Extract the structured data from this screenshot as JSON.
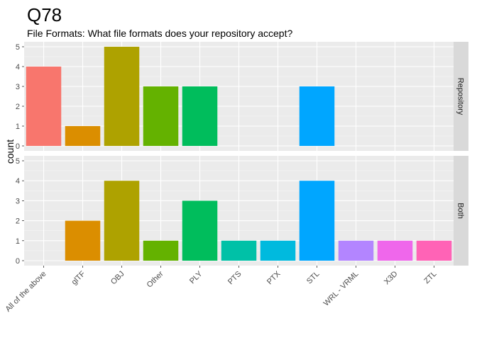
{
  "chart_data": {
    "type": "bar",
    "title": "Q78",
    "subtitle": "File Formats: What file formats does your repository accept?",
    "xlabel": "",
    "ylabel": "count",
    "ylim": [
      0,
      5
    ],
    "yticks": [
      "0",
      "1",
      "2",
      "3",
      "4",
      "5"
    ],
    "categories": [
      "All of the above",
      "glTF",
      "OBJ",
      "Other",
      "PLY",
      "PTS",
      "PTX",
      "STL",
      "WRL - VRML",
      "X3D",
      "ZTL"
    ],
    "colors": [
      "#F8766D",
      "#DB8E00",
      "#AEA200",
      "#64B200",
      "#00BD5C",
      "#00C1A7",
      "#00BADE",
      "#00A6FF",
      "#B385FF",
      "#EF67EB",
      "#FF63B6"
    ],
    "facets": [
      {
        "label": "Repository",
        "values": [
          4,
          1,
          5,
          3,
          3,
          0,
          0,
          3,
          0,
          0,
          0
        ]
      },
      {
        "label": "Both",
        "values": [
          0,
          2,
          4,
          1,
          3,
          1,
          1,
          4,
          1,
          1,
          1
        ]
      }
    ]
  }
}
